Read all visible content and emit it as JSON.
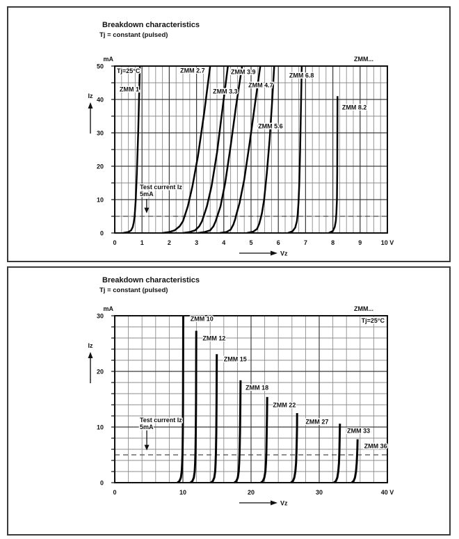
{
  "colors": {
    "text": "#111111",
    "curve": "#050505",
    "grid_minor": "#8c8c8c",
    "grid_major": "#3c3c3c",
    "plot_border": "#0f0f0f",
    "dashed_line": "#4a4a4a",
    "panel_border": "#3a3a3a"
  },
  "chart_data": [
    {
      "type": "line",
      "title": "Breakdown characteristics",
      "subtitle": "Tj = constant (pulsed)",
      "corner_note": "ZMM...",
      "condition": "Tj=25°C",
      "condition_side": "left",
      "xlabel": "Vz",
      "ylabel": "Iz",
      "x_unit": "V",
      "y_unit": "mA",
      "xlim": [
        0,
        10
      ],
      "ylim": [
        0,
        50
      ],
      "x_major": 1,
      "x_minor": 0.25,
      "y_major": 10,
      "y_minor": 5,
      "x_tick_labels": [
        "0",
        "1",
        "2",
        "3",
        "4",
        "5",
        "6",
        "7",
        "8",
        "9",
        "10 V"
      ],
      "y_tick_labels": [
        "0",
        "10",
        "20",
        "30",
        "40",
        "50"
      ],
      "grid": true,
      "test_current": {
        "label_lines": [
          "Test current Iz",
          "5mA"
        ],
        "value_mA": 5,
        "text_v": 0.92,
        "text_mA": 13.75,
        "arrow_v": 1.17,
        "arrow_from_mA": 10.2,
        "arrow_to_mA": 5.9
      },
      "series": [
        {
          "name": "ZMM 1",
          "label_x": 0.18,
          "label_y": 43.1,
          "points": [
            [
              0.3,
              0
            ],
            [
              0.5,
              0.3
            ],
            [
              0.6,
              0.8
            ],
            [
              0.66,
              1.8
            ],
            [
              0.7,
              3.2
            ],
            [
              0.73,
              5
            ],
            [
              0.77,
              10
            ],
            [
              0.81,
              18
            ],
            [
              0.86,
              30
            ],
            [
              0.92,
              50
            ]
          ]
        },
        {
          "name": "ZMM 2.7",
          "label_x": 2.4,
          "label_y": 48.75,
          "points": [
            [
              1.75,
              0
            ],
            [
              2.0,
              0.3
            ],
            [
              2.2,
              0.8
            ],
            [
              2.38,
              2
            ],
            [
              2.5,
              3.5
            ],
            [
              2.56,
              5
            ],
            [
              2.68,
              8
            ],
            [
              2.85,
              14
            ],
            [
              3.05,
              23
            ],
            [
              3.28,
              36
            ],
            [
              3.5,
              50
            ]
          ]
        },
        {
          "name": "ZMM 3.3",
          "label_x": 3.6,
          "label_y": 42.5,
          "points": [
            [
              2.5,
              0
            ],
            [
              2.75,
              0.3
            ],
            [
              2.95,
              0.8
            ],
            [
              3.1,
              2
            ],
            [
              3.2,
              3.5
            ],
            [
              3.26,
              5
            ],
            [
              3.38,
              8
            ],
            [
              3.55,
              14
            ],
            [
              3.75,
              24
            ],
            [
              3.95,
              37
            ],
            [
              4.15,
              50
            ]
          ]
        },
        {
          "name": "ZMM 3.9",
          "label_x": 4.26,
          "label_y": 48.3,
          "points": [
            [
              3.05,
              0
            ],
            [
              3.3,
              0.3
            ],
            [
              3.5,
              0.8
            ],
            [
              3.62,
              2
            ],
            [
              3.7,
              3.5
            ],
            [
              3.76,
              5
            ],
            [
              3.88,
              8
            ],
            [
              4.05,
              15
            ],
            [
              4.25,
              26
            ],
            [
              4.45,
              38
            ],
            [
              4.67,
              50
            ]
          ]
        },
        {
          "name": "ZMM 4.7",
          "label_x": 4.9,
          "label_y": 44.4,
          "points": [
            [
              3.85,
              0
            ],
            [
              4.1,
              0.3
            ],
            [
              4.25,
              1
            ],
            [
              4.35,
              2.5
            ],
            [
              4.42,
              4.2
            ],
            [
              4.46,
              5.5
            ],
            [
              4.58,
              9
            ],
            [
              4.75,
              16
            ],
            [
              4.95,
              27
            ],
            [
              5.15,
              39
            ],
            [
              5.34,
              50
            ]
          ]
        },
        {
          "name": "ZMM 5.6",
          "label_x": 5.26,
          "label_y": 32.1,
          "points": [
            [
              4.85,
              0
            ],
            [
              5.08,
              0.4
            ],
            [
              5.22,
              1.2
            ],
            [
              5.3,
              2.8
            ],
            [
              5.36,
              4.6
            ],
            [
              5.4,
              6
            ],
            [
              5.48,
              10
            ],
            [
              5.58,
              18
            ],
            [
              5.68,
              28
            ],
            [
              5.77,
              39
            ],
            [
              5.85,
              50
            ]
          ]
        },
        {
          "name": "ZMM 6.8",
          "label_x": 6.4,
          "label_y": 47.3,
          "points": [
            [
              6.35,
              0
            ],
            [
              6.52,
              0.5
            ],
            [
              6.62,
              1.6
            ],
            [
              6.68,
              3.5
            ],
            [
              6.71,
              5.5
            ],
            [
              6.74,
              9
            ],
            [
              6.77,
              15
            ],
            [
              6.8,
              25
            ],
            [
              6.83,
              37
            ],
            [
              6.86,
              50
            ]
          ]
        },
        {
          "name": "ZMM 8.2",
          "label_x": 8.34,
          "label_y": 37.7,
          "points": [
            [
              7.85,
              0
            ],
            [
              8.0,
              0.6
            ],
            [
              8.07,
              1.8
            ],
            [
              8.11,
              3.6
            ],
            [
              8.13,
              6
            ],
            [
              8.15,
              10
            ],
            [
              8.16,
              18
            ],
            [
              8.17,
              41
            ]
          ]
        }
      ]
    },
    {
      "type": "line",
      "title": "Breakdown characteristics",
      "subtitle": "Tj = constant (pulsed)",
      "corner_note": "ZMM...",
      "condition": "Tj=25°C",
      "condition_side": "right",
      "xlabel": "Vz",
      "ylabel": "Iz",
      "x_unit": "V",
      "y_unit": "mA",
      "xlim": [
        0,
        40
      ],
      "ylim": [
        0,
        30
      ],
      "x_major": 10,
      "x_minor": 2,
      "y_major": 10,
      "y_minor": 2,
      "x_tick_labels": [
        "0",
        "10",
        "20",
        "30",
        "40 V"
      ],
      "y_tick_labels": [
        "0",
        "10",
        "20",
        "30"
      ],
      "grid": true,
      "test_current": {
        "label_lines": [
          "Test current Iz",
          "5mA"
        ],
        "value_mA": 5,
        "text_v": 3.67,
        "text_mA": 11.25,
        "arrow_v": 4.7,
        "arrow_from_mA": 9.4,
        "arrow_to_mA": 5.8
      },
      "series": [
        {
          "name": "ZMM 10",
          "label_x": 11.1,
          "label_y": 29.5,
          "points": [
            [
              9.2,
              0
            ],
            [
              9.5,
              0.3
            ],
            [
              9.7,
              0.9
            ],
            [
              9.83,
              2
            ],
            [
              9.9,
              3.5
            ],
            [
              9.95,
              5.5
            ],
            [
              9.99,
              9
            ],
            [
              10.02,
              15
            ],
            [
              10.05,
              30
            ]
          ]
        },
        {
          "name": "ZMM 12",
          "label_x": 12.9,
          "label_y": 26.0,
          "points": [
            [
              11.1,
              0
            ],
            [
              11.4,
              0.3
            ],
            [
              11.6,
              0.9
            ],
            [
              11.73,
              2
            ],
            [
              11.8,
              3.5
            ],
            [
              11.85,
              5.5
            ],
            [
              11.89,
              9
            ],
            [
              11.93,
              15
            ],
            [
              11.96,
              27.3
            ]
          ]
        },
        {
          "name": "ZMM 15",
          "label_x": 16.0,
          "label_y": 22.25,
          "points": [
            [
              14.1,
              0
            ],
            [
              14.4,
              0.3
            ],
            [
              14.6,
              0.9
            ],
            [
              14.73,
              2
            ],
            [
              14.8,
              3.5
            ],
            [
              14.85,
              5.5
            ],
            [
              14.9,
              9
            ],
            [
              14.94,
              15
            ],
            [
              14.97,
              23.1
            ]
          ]
        },
        {
          "name": "ZMM 18",
          "label_x": 19.2,
          "label_y": 17.1,
          "points": [
            [
              17.55,
              0
            ],
            [
              17.85,
              0.3
            ],
            [
              18.05,
              0.9
            ],
            [
              18.18,
              2
            ],
            [
              18.26,
              3.5
            ],
            [
              18.32,
              5.5
            ],
            [
              18.38,
              9
            ],
            [
              18.43,
              14
            ],
            [
              18.46,
              18.4
            ]
          ]
        },
        {
          "name": "ZMM 22",
          "label_x": 23.2,
          "label_y": 14.0,
          "points": [
            [
              21.45,
              0
            ],
            [
              21.75,
              0.3
            ],
            [
              21.95,
              0.9
            ],
            [
              22.1,
              2
            ],
            [
              22.18,
              3.5
            ],
            [
              22.24,
              5.5
            ],
            [
              22.3,
              9
            ],
            [
              22.34,
              12
            ],
            [
              22.37,
              15.4
            ]
          ]
        },
        {
          "name": "ZMM 27",
          "label_x": 28.0,
          "label_y": 11.0,
          "points": [
            [
              25.85,
              0
            ],
            [
              26.15,
              0.3
            ],
            [
              26.35,
              0.9
            ],
            [
              26.5,
              2
            ],
            [
              26.6,
              3.5
            ],
            [
              26.66,
              5.5
            ],
            [
              26.71,
              8
            ],
            [
              26.74,
              10
            ],
            [
              26.76,
              12.5
            ]
          ]
        },
        {
          "name": "ZMM 33",
          "label_x": 34.1,
          "label_y": 9.4,
          "points": [
            [
              32.15,
              0
            ],
            [
              32.45,
              0.3
            ],
            [
              32.65,
              0.9
            ],
            [
              32.8,
              2
            ],
            [
              32.9,
              3.5
            ],
            [
              32.96,
              5.5
            ],
            [
              33.0,
              8
            ],
            [
              33.04,
              10.6
            ]
          ]
        },
        {
          "name": "ZMM 36",
          "label_x": 36.6,
          "label_y": 6.6,
          "points": [
            [
              34.75,
              0
            ],
            [
              35.05,
              0.3
            ],
            [
              35.25,
              0.9
            ],
            [
              35.4,
              2
            ],
            [
              35.5,
              3.5
            ],
            [
              35.56,
              5
            ],
            [
              35.6,
              6.3
            ],
            [
              35.63,
              7.8
            ]
          ]
        }
      ]
    }
  ]
}
